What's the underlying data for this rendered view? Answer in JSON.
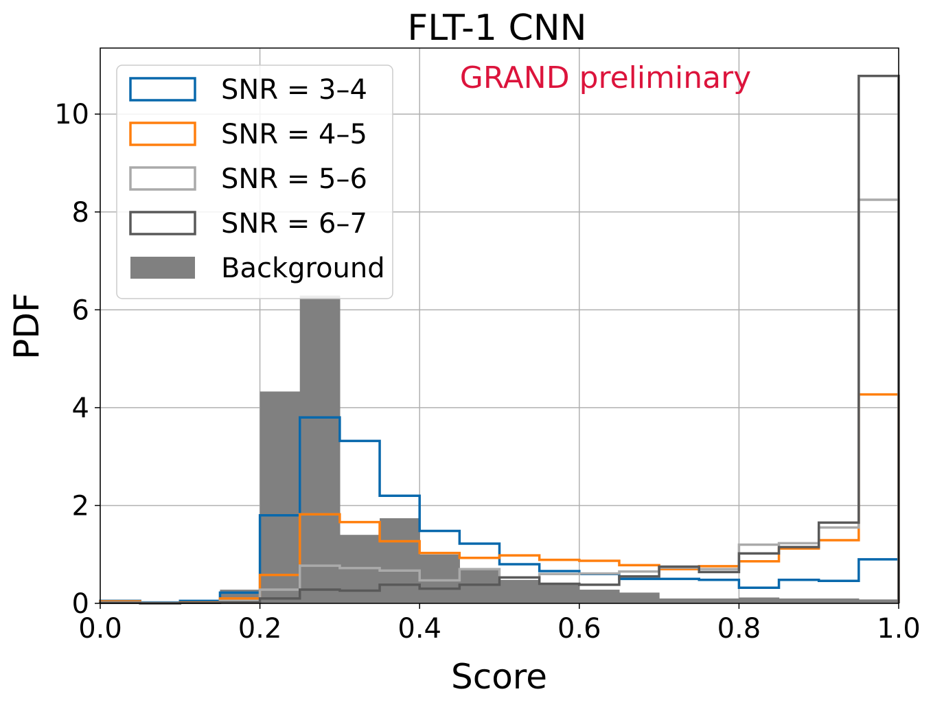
{
  "chart_data": {
    "type": "histogram",
    "title": "FLT-1 CNN",
    "xlabel": "Score",
    "ylabel": "PDF",
    "xlim": [
      0.0,
      1.0
    ],
    "ylim": [
      0,
      11.35
    ],
    "grid": true,
    "legend_position": "top-left",
    "annotation": "GRAND preliminary",
    "annotation_color": "#dc143c",
    "x_ticks": [
      "0.0",
      "0.2",
      "0.4",
      "0.6",
      "0.8",
      "1.0"
    ],
    "y_ticks": [
      "0",
      "2",
      "4",
      "6",
      "8",
      "10"
    ],
    "bin_edges": [
      0.0,
      0.05,
      0.1,
      0.15,
      0.2,
      0.25,
      0.3,
      0.35,
      0.4,
      0.45,
      0.5,
      0.55,
      0.6,
      0.65,
      0.7,
      0.75,
      0.8,
      0.85,
      0.9,
      0.95,
      1.0
    ],
    "background": {
      "name": "Background",
      "color": "#808080",
      "values": [
        0.05,
        0.02,
        0.05,
        0.28,
        4.33,
        6.29,
        1.4,
        1.74,
        1.0,
        0.68,
        0.48,
        0.38,
        0.28,
        0.22,
        0.1,
        0.1,
        0.12,
        0.1,
        0.1,
        0.08
      ]
    },
    "series": [
      {
        "name": "SNR = 3–4",
        "color": "#0868ac",
        "values": [
          0.05,
          0.02,
          0.05,
          0.22,
          1.8,
          3.8,
          3.32,
          2.2,
          1.48,
          1.22,
          0.8,
          0.66,
          0.6,
          0.5,
          0.5,
          0.48,
          0.32,
          0.48,
          0.46,
          0.9
        ]
      },
      {
        "name": "SNR = 4–5",
        "color": "#ff7f0e",
        "values": [
          0.04,
          0.01,
          0.02,
          0.1,
          0.58,
          1.82,
          1.66,
          1.27,
          1.03,
          0.93,
          0.98,
          0.89,
          0.87,
          0.78,
          0.7,
          0.76,
          0.86,
          1.12,
          1.29,
          4.27
        ]
      },
      {
        "name": "SNR = 5–6",
        "color": "#aaaaaa",
        "values": [
          0.02,
          0.01,
          0.01,
          0.05,
          0.28,
          0.77,
          0.72,
          0.67,
          0.47,
          0.7,
          0.53,
          0.6,
          0.61,
          0.65,
          0.73,
          0.7,
          1.2,
          1.23,
          1.55,
          8.25
        ]
      },
      {
        "name": "SNR = 6–7",
        "color": "#595959",
        "values": [
          0.01,
          0.0,
          0.01,
          0.02,
          0.1,
          0.28,
          0.26,
          0.38,
          0.3,
          0.38,
          0.53,
          0.4,
          0.38,
          0.55,
          0.75,
          0.64,
          1.02,
          1.15,
          1.65,
          10.78
        ]
      }
    ]
  }
}
